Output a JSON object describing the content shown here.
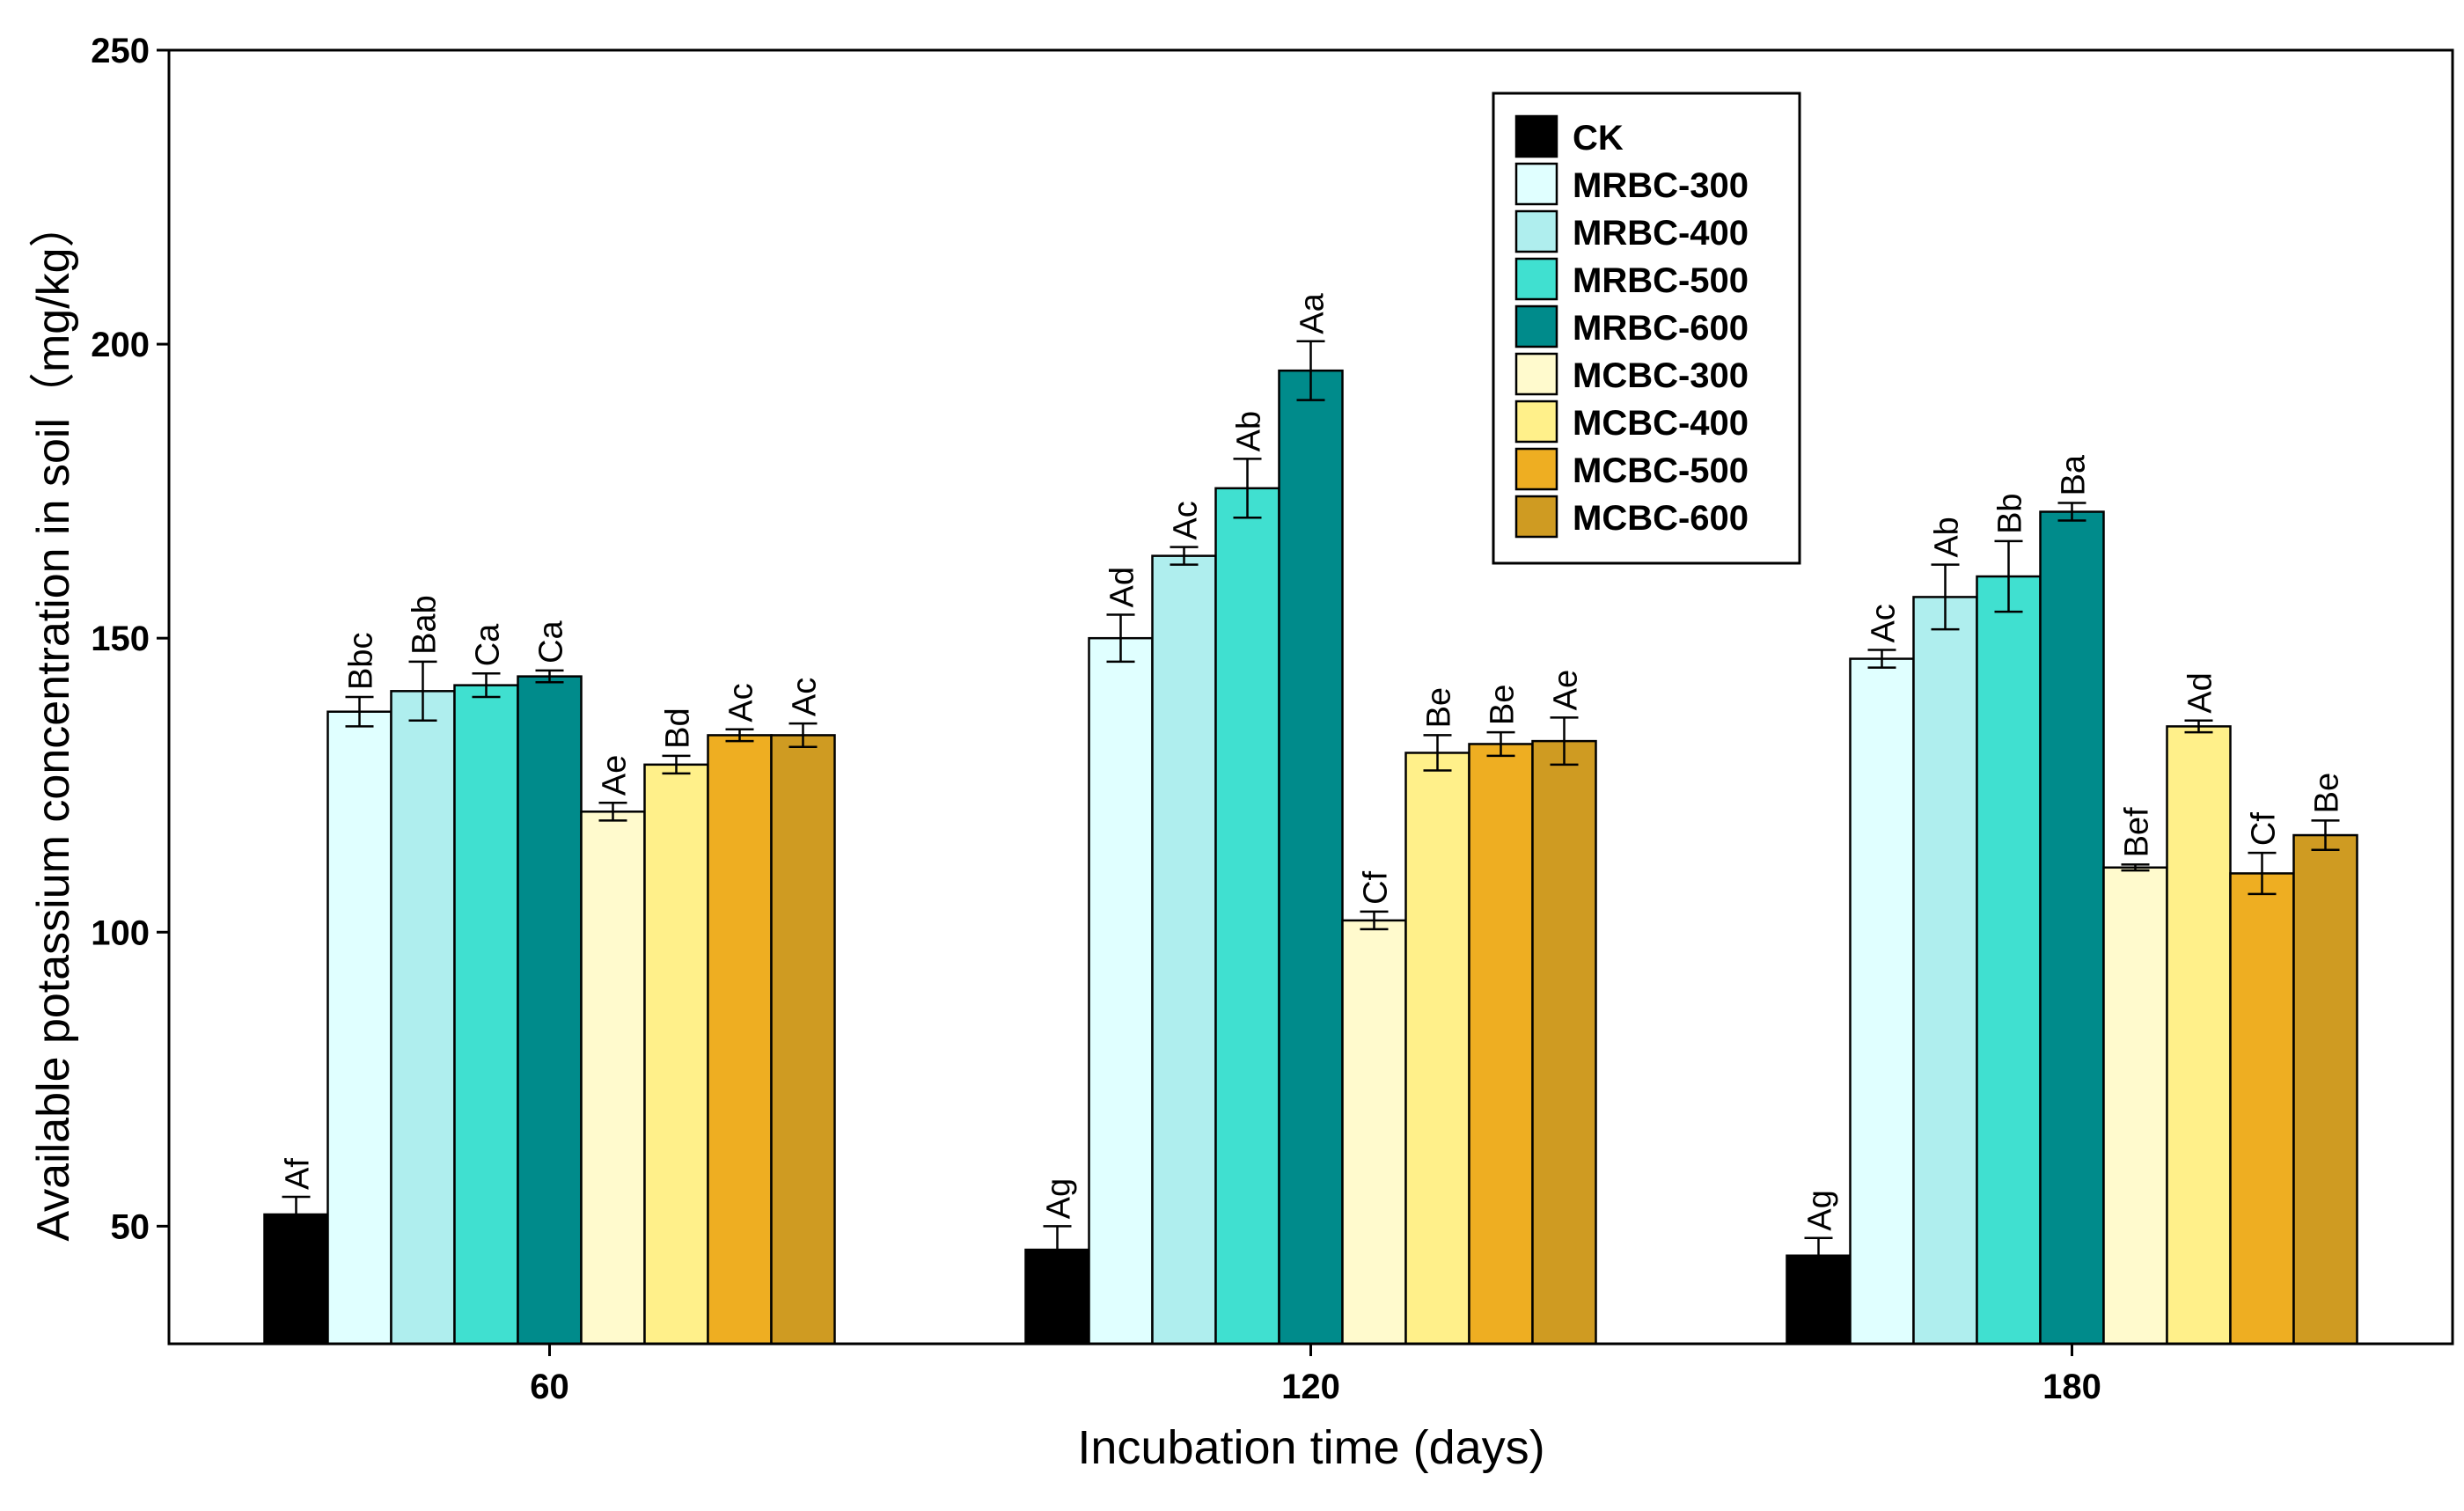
{
  "chart_data": {
    "type": "bar",
    "xlabel": "Incubation time (days)",
    "ylabel": "Available potassium concentration in soil（mg/kg）",
    "ylim": [
      30,
      250
    ],
    "yticks": [
      50,
      100,
      150,
      200,
      250
    ],
    "categories": [
      "60",
      "120",
      "180"
    ],
    "legend_position": "top-center",
    "series": [
      {
        "name": "CK",
        "color": "#000000",
        "values": [
          52,
          46,
          45
        ],
        "errors": [
          3,
          4,
          3
        ],
        "labels": [
          "Af",
          "Ag",
          "Ag"
        ]
      },
      {
        "name": "MRBC-300",
        "color": "#E0FFFF",
        "values": [
          137.5,
          150,
          146.5
        ],
        "errors": [
          2.5,
          4,
          1.5
        ],
        "labels": [
          "Bbc",
          "Ad",
          "Ac"
        ]
      },
      {
        "name": "MRBC-400",
        "color": "#AFEEEE",
        "values": [
          141,
          164,
          157
        ],
        "errors": [
          5,
          1.5,
          5.5
        ],
        "labels": [
          "Bab",
          "Ac",
          "Ab"
        ]
      },
      {
        "name": "MRBC-500",
        "color": "#40E0D0",
        "values": [
          142,
          175.5,
          160.5
        ],
        "errors": [
          2,
          5,
          6
        ],
        "labels": [
          "Ca",
          "Ab",
          "Bb"
        ]
      },
      {
        "name": "MRBC-600",
        "color": "#008B8B",
        "values": [
          143.5,
          195.5,
          171.5
        ],
        "errors": [
          1,
          5,
          1.5
        ],
        "labels": [
          "Ca",
          "Aa",
          "Ba"
        ]
      },
      {
        "name": "MCBC-300",
        "color": "#FFFACD",
        "values": [
          120.5,
          102,
          111
        ],
        "errors": [
          1.5,
          1.5,
          0.5
        ],
        "labels": [
          "Ae",
          "Cf",
          "Bef"
        ]
      },
      {
        "name": "MCBC-400",
        "color": "#FFF08A",
        "values": [
          128.5,
          130.5,
          135
        ],
        "errors": [
          1.5,
          3,
          1
        ],
        "labels": [
          "Bd",
          "Be",
          "Ad"
        ]
      },
      {
        "name": "MCBC-500",
        "color": "#EEAE22",
        "values": [
          133.5,
          132,
          110
        ],
        "errors": [
          1,
          2,
          3.5
        ],
        "labels": [
          "Ac",
          "Be",
          "Cf"
        ]
      },
      {
        "name": "MCBC-600",
        "color": "#CF9B22",
        "values": [
          133.5,
          132.5,
          116.5
        ],
        "errors": [
          2,
          4,
          2.5
        ],
        "labels": [
          "Ac",
          "Ae",
          "Be"
        ]
      }
    ]
  }
}
